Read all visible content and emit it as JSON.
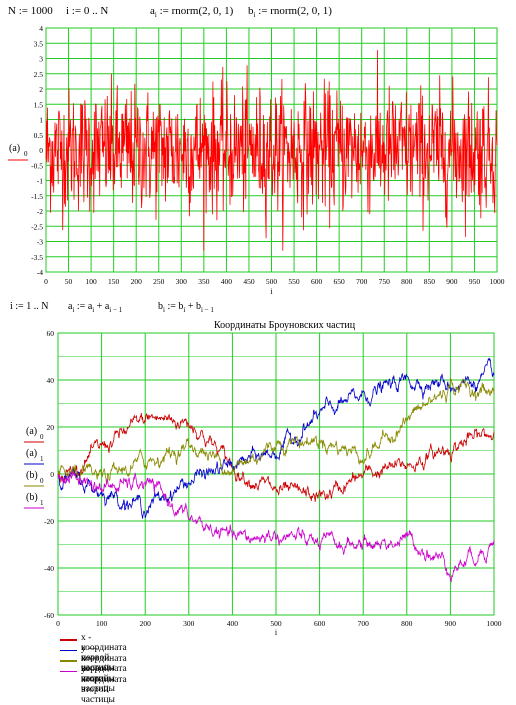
{
  "formulas": {
    "n_def": "N := 1000",
    "i_range": "i := 0 .. N",
    "a_norm": "a  := rnorm(2, 0, 1)",
    "b_norm": "b  := rnorm(2, 0, 1)",
    "i_range2": "i := 1 .. N",
    "a_sum": "a  := a  + a",
    "b_sum": "b  := b  + b"
  },
  "chart1": {
    "ylabel_text": "(a)",
    "ylabel_sub": "0",
    "xlabel": "i",
    "y_ticks": [
      "4",
      "3.5",
      "3",
      "2.5",
      "2",
      "1.5",
      "1",
      "0.5",
      "0",
      "-0.5",
      "-1",
      "-1.5",
      "-2",
      "-2.5",
      "-3",
      "-3.5",
      "-4"
    ],
    "x_ticks": [
      "0",
      "50",
      "100",
      "150",
      "200",
      "250",
      "300",
      "350",
      "400",
      "450",
      "500",
      "550",
      "600",
      "650",
      "700",
      "750",
      "800",
      "850",
      "900",
      "950",
      "1000"
    ]
  },
  "chart2": {
    "title": "Координаты Броуновских частиц",
    "xlabel": "i",
    "ylabels": [
      {
        "text": "(a)",
        "sub": "0"
      },
      {
        "text": "(a)",
        "sub": "1"
      },
      {
        "text": "(b)",
        "sub": "0"
      },
      {
        "text": "(b)",
        "sub": "1"
      }
    ],
    "y_ticks": [
      "60",
      "40",
      "20",
      "0",
      "-20",
      "-40",
      "-60"
    ],
    "x_ticks": [
      "0",
      "100",
      "200",
      "300",
      "400",
      "500",
      "600",
      "700",
      "800",
      "900",
      "1000"
    ],
    "legend": [
      {
        "label": "x - координата первой частицы",
        "color": "#cc0000"
      },
      {
        "label": "y — координата первой частицы",
        "color": "#0000cc"
      },
      {
        "label": "x — координата второй частицы",
        "color": "#888800"
      },
      {
        "label": "y — координата второй частицы",
        "color": "#cc00cc"
      }
    ]
  },
  "chart_data": [
    {
      "type": "line",
      "title": "",
      "xlabel": "i",
      "ylabel": "(a)0",
      "xlim": [
        0,
        1000
      ],
      "ylim": [
        -4,
        4
      ],
      "grid": true,
      "series": [
        {
          "color": "#ff0000",
          "x": [
            0,
            1000
          ],
          "y": [
            0,
            0
          ],
          "note_values": "random normal noise, mean 0, sd 1, 1000 points"
        }
      ]
    },
    {
      "type": "line",
      "title": "Координаты Броуновских частиц",
      "xlabel": "i",
      "xlim": [
        0,
        1000
      ],
      "ylim": [
        -60,
        60
      ],
      "grid": true,
      "legend_position": "bottom",
      "series": [
        {
          "name": "x - координата первой частицы",
          "color": "#cc0000",
          "x": [
            0,
            100,
            200,
            300,
            400,
            500,
            600,
            700,
            800,
            900,
            1000
          ],
          "y": [
            -2,
            12,
            24,
            22,
            2,
            -8,
            -10,
            0,
            4,
            12,
            18
          ]
        },
        {
          "name": "y — координата первой частицы",
          "color": "#0000cc",
          "x": [
            0,
            100,
            200,
            300,
            400,
            500,
            600,
            700,
            800,
            900,
            1000
          ],
          "y": [
            0,
            -8,
            -14,
            -2,
            4,
            10,
            26,
            34,
            40,
            38,
            42
          ]
        },
        {
          "name": "x — координата второй частицы",
          "color": "#888800",
          "x": [
            0,
            100,
            200,
            300,
            400,
            500,
            600,
            700,
            800,
            900,
            1000
          ],
          "y": [
            0,
            -2,
            6,
            12,
            2,
            14,
            14,
            8,
            24,
            38,
            34
          ]
        },
        {
          "name": "y — координата второй частицы",
          "color": "#cc00cc",
          "x": [
            0,
            100,
            200,
            300,
            400,
            500,
            600,
            700,
            800,
            900,
            1000
          ],
          "y": [
            0,
            -6,
            -4,
            -20,
            -28,
            -26,
            -30,
            -30,
            -28,
            -40,
            -28
          ]
        }
      ]
    }
  ]
}
